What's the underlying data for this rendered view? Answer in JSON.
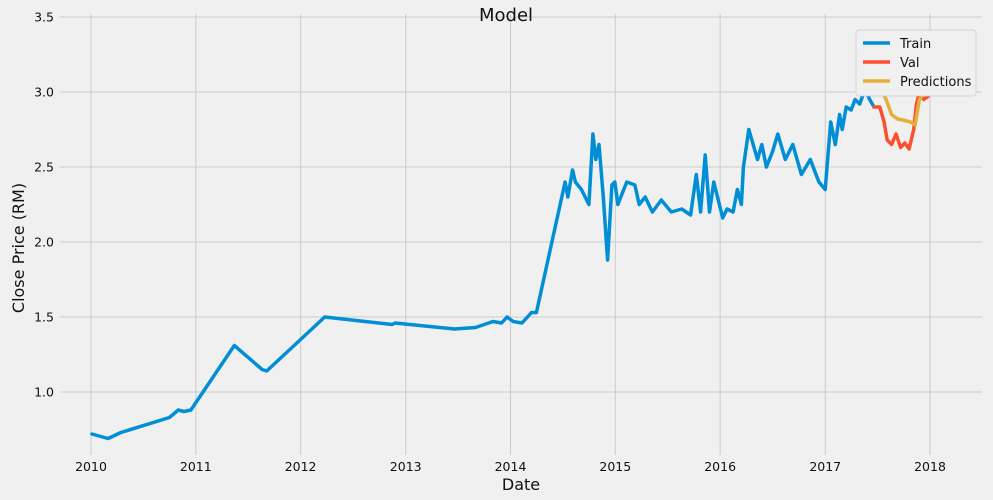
{
  "chart_data": {
    "type": "line",
    "title": "Model",
    "xlabel": "Date",
    "ylabel": "Close Price (RM)",
    "xlim": [
      "2009-09-15",
      "2018-07-01"
    ],
    "ylim": [
      0.58,
      3.52
    ],
    "x_ticks": [
      "2010",
      "2011",
      "2012",
      "2013",
      "2014",
      "2015",
      "2016",
      "2017",
      "2018"
    ],
    "y_ticks": [
      "1.0",
      "1.5",
      "2.0",
      "2.5",
      "3.0",
      "3.5"
    ],
    "grid": true,
    "legend": "top-right",
    "colors": {
      "background": "#f0f0f0",
      "grid": "#cbcbcb",
      "Train": "#008fd5",
      "Val": "#fc4f30",
      "Predictions": "#e5ae38"
    },
    "series": [
      {
        "name": "Train",
        "x": [
          "2010-01-04",
          "2010-03-01",
          "2010-04-15",
          "2010-10-01",
          "2010-11-01",
          "2010-11-20",
          "2010-12-15",
          "2011-05-15",
          "2011-08-20",
          "2011-09-05",
          "2012-01-01",
          "2012-03-25",
          "2012-11-15",
          "2012-11-25",
          "2013-06-20",
          "2013-09-01",
          "2013-11-01",
          "2013-12-01",
          "2013-12-20",
          "2014-01-10",
          "2014-02-10",
          "2014-03-15",
          "2014-04-01",
          "2014-07-10",
          "2014-07-20",
          "2014-08-05",
          "2014-08-15",
          "2014-09-05",
          "2014-10-01",
          "2014-10-15",
          "2014-10-25",
          "2014-11-05",
          "2014-11-20",
          "2014-12-05",
          "2014-12-20",
          "2014-12-30",
          "2015-01-10",
          "2015-01-20",
          "2015-02-10",
          "2015-03-10",
          "2015-03-25",
          "2015-04-15",
          "2015-05-10",
          "2015-06-10",
          "2015-07-15",
          "2015-08-20",
          "2015-09-20",
          "2015-10-10",
          "2015-10-25",
          "2015-11-10",
          "2015-11-25",
          "2015-12-10",
          "2016-01-10",
          "2016-01-25",
          "2016-02-15",
          "2016-03-01",
          "2016-03-15",
          "2016-03-22",
          "2016-04-10",
          "2016-05-10",
          "2016-05-25",
          "2016-06-10",
          "2016-07-01",
          "2016-07-20",
          "2016-08-15",
          "2016-09-10",
          "2016-10-10",
          "2016-11-10",
          "2016-12-10",
          "2017-01-01",
          "2017-01-20",
          "2017-02-05",
          "2017-02-20",
          "2017-03-01",
          "2017-03-15",
          "2017-04-01",
          "2017-04-15",
          "2017-05-01",
          "2017-05-20",
          "2017-06-05",
          "2017-06-20"
        ],
        "y": [
          0.72,
          0.69,
          0.73,
          0.83,
          0.88,
          0.87,
          0.88,
          1.31,
          1.15,
          1.14,
          1.35,
          1.5,
          1.45,
          1.46,
          1.42,
          1.43,
          1.47,
          1.46,
          1.5,
          1.47,
          1.46,
          1.53,
          1.53,
          2.4,
          2.3,
          2.48,
          2.4,
          2.35,
          2.25,
          2.72,
          2.55,
          2.65,
          2.3,
          1.88,
          2.38,
          2.4,
          2.25,
          2.3,
          2.4,
          2.38,
          2.25,
          2.3,
          2.2,
          2.28,
          2.2,
          2.22,
          2.18,
          2.45,
          2.2,
          2.58,
          2.2,
          2.4,
          2.16,
          2.22,
          2.2,
          2.35,
          2.25,
          2.5,
          2.75,
          2.55,
          2.65,
          2.5,
          2.6,
          2.72,
          2.55,
          2.65,
          2.45,
          2.55,
          2.4,
          2.35,
          2.8,
          2.65,
          2.85,
          2.75,
          2.9,
          2.88,
          2.95,
          2.92,
          3.02,
          2.95,
          2.9
        ]
      },
      {
        "name": "Val",
        "x": [
          "2017-06-20",
          "2017-07-10",
          "2017-07-25",
          "2017-08-05",
          "2017-08-20",
          "2017-09-05",
          "2017-09-20",
          "2017-10-05",
          "2017-10-20",
          "2017-11-05",
          "2017-11-15",
          "2017-11-25",
          "2017-12-10",
          "2017-12-25",
          "2018-01-05",
          "2018-01-15",
          "2018-01-22"
        ],
        "y": [
          2.9,
          2.9,
          2.8,
          2.68,
          2.65,
          2.72,
          2.63,
          2.66,
          2.62,
          2.75,
          2.92,
          3.0,
          2.95,
          2.97,
          3.02,
          3.1,
          3.38
        ]
      },
      {
        "name": "Predictions",
        "x": [
          "2017-06-20",
          "2017-07-10",
          "2017-08-01",
          "2017-08-20",
          "2017-09-10",
          "2017-10-05",
          "2017-10-25",
          "2017-11-10",
          "2017-11-25",
          "2017-12-15",
          "2018-01-05",
          "2018-01-20"
        ],
        "y": [
          3.05,
          3.03,
          2.95,
          2.85,
          2.82,
          2.81,
          2.8,
          2.78,
          2.95,
          3.0,
          3.02,
          3.22
        ]
      }
    ]
  }
}
